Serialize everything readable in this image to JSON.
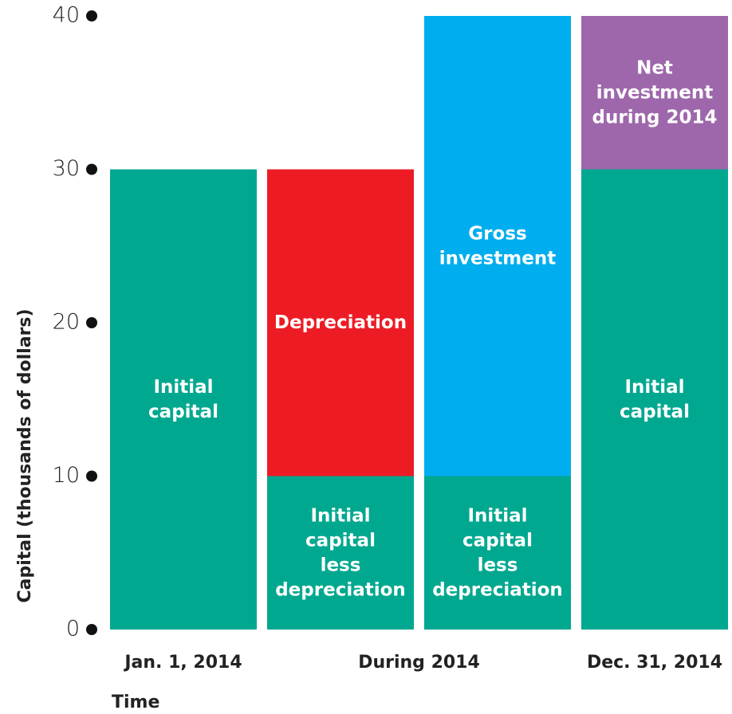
{
  "chart_data": {
    "type": "stacked_bar",
    "y_axis_label": "Capital (thousands of dollars)",
    "x_axis_label": "Time",
    "categories": [
      "Jan. 1, 2014",
      "During 2014",
      null,
      "Dec. 31, 2014"
    ],
    "series": [
      {
        "name": "Initial\ncapital",
        "color": "#00a88f",
        "values": [
          30,
          null,
          null,
          30
        ]
      },
      {
        "name": "Initial\ncapital\nless\ndepreciation",
        "color": "#00a88f",
        "values": [
          null,
          10,
          10,
          null
        ]
      },
      {
        "name": "Depreciation",
        "color": "#ed1c24",
        "values": [
          null,
          20,
          null,
          null
        ]
      },
      {
        "name": "Gross\ninvestment",
        "color": "#00aeef",
        "values": [
          null,
          null,
          30,
          null
        ]
      },
      {
        "name": "Net\ninvestment\nduring 2014",
        "color": "#9e67ab",
        "values": [
          null,
          null,
          null,
          10
        ]
      }
    ],
    "ylim": [
      0,
      40
    ],
    "yticks": [
      0,
      10,
      20,
      30,
      40
    ]
  }
}
